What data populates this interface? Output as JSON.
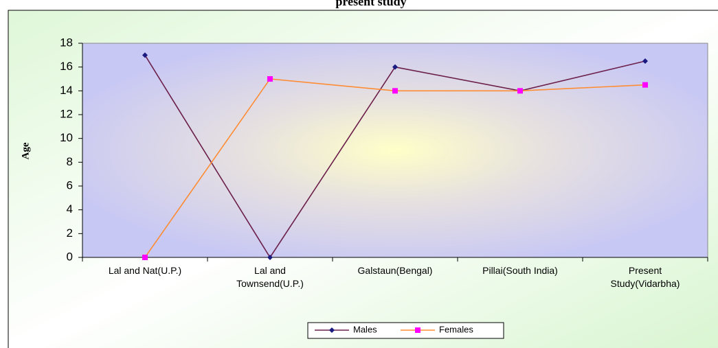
{
  "chart_data": {
    "type": "line",
    "title": "present study",
    "categories": [
      "Lal and Nat(U.P.)",
      "Lal and\nTownsend(U.P.)",
      "Galstaun(Bengal)",
      "Pillai(South India)",
      "Present\nStudy(Vidarbha)"
    ],
    "series": [
      {
        "name": "Males",
        "color": "#6b1f4a",
        "marker_color": "#1a1a80",
        "marker": "diamond",
        "values": [
          17,
          0,
          16,
          14,
          16.5
        ]
      },
      {
        "name": "Females",
        "color": "#ff8c33",
        "marker_color": "#ff00ff",
        "marker": "square",
        "values": [
          0,
          15,
          14,
          14,
          14.5
        ]
      }
    ],
    "y_label": "Age",
    "ylim": [
      0,
      18
    ],
    "yticks": [
      0,
      2,
      4,
      6,
      8,
      10,
      12,
      14,
      16,
      18
    ],
    "legend": "bottom"
  }
}
